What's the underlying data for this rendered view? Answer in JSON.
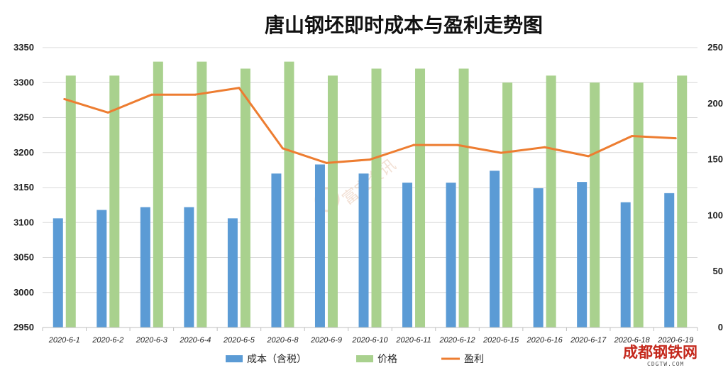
{
  "chart_data": {
    "type": "bar",
    "title": "唐山钢坯即时成本与盈利走势图",
    "categories": [
      "2020-6-1",
      "2020-6-2",
      "2020-6-3",
      "2020-6-4",
      "2020-6-5",
      "2020-6-8",
      "2020-6-9",
      "2020-6-10",
      "2020-6-11",
      "2020-6-12",
      "2020-6-15",
      "2020-6-16",
      "2020-6-17",
      "2020-6-18",
      "2020-6-19"
    ],
    "series": [
      {
        "name": "成本（含税）",
        "type": "bar",
        "axis": "left",
        "color": "#5b9bd5",
        "values": [
          3106,
          3118,
          3122,
          3122,
          3106,
          3170,
          3183,
          3170,
          3157,
          3157,
          3174,
          3149,
          3158,
          3129,
          3142
        ]
      },
      {
        "name": "价格",
        "type": "bar",
        "axis": "left",
        "color": "#a9d18e",
        "values": [
          3310,
          3310,
          3330,
          3330,
          3320,
          3330,
          3310,
          3320,
          3320,
          3320,
          3300,
          3310,
          3300,
          3300,
          3310
        ]
      },
      {
        "name": "盈利",
        "type": "line",
        "axis": "right",
        "color": "#ed7d31",
        "values": [
          204,
          192,
          208,
          208,
          214,
          160,
          147,
          150,
          163,
          163,
          156,
          161,
          153,
          171,
          169
        ]
      }
    ],
    "ylim_left": [
      2950,
      3350
    ],
    "yticks_left": [
      2950,
      3000,
      3050,
      3100,
      3150,
      3200,
      3250,
      3300,
      3350
    ],
    "ylim_right": [
      0,
      250
    ],
    "yticks_right": [
      0,
      50,
      100,
      150,
      200,
      250
    ],
    "grid": true,
    "legend": "bottom"
  },
  "watermark": {
    "text": "富宝资讯"
  },
  "logo": {
    "text": "成都钢铁网",
    "sub": "CDGTW.COM"
  }
}
